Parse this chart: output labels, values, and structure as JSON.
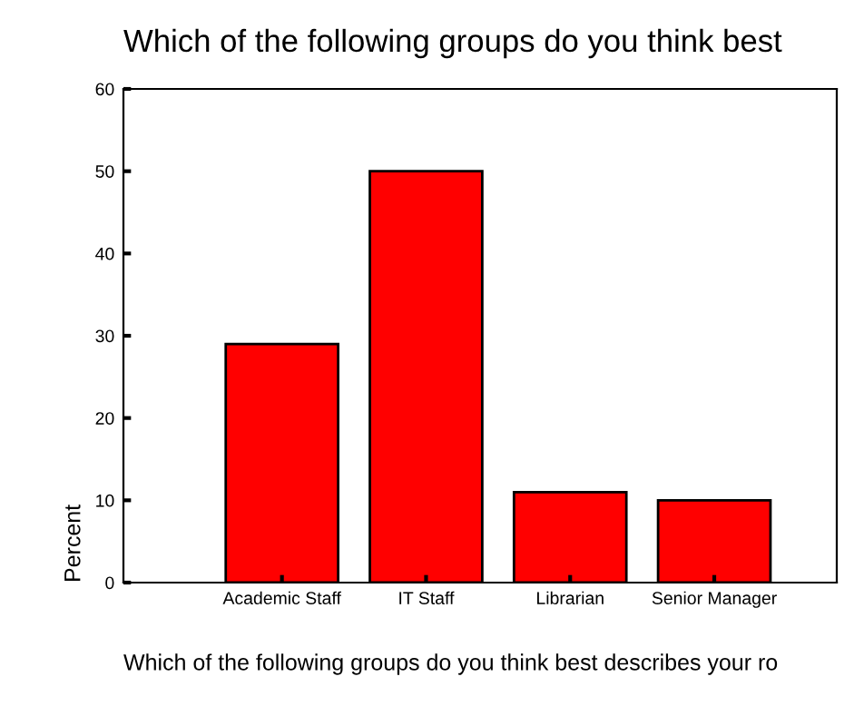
{
  "chart_data": {
    "type": "bar",
    "title": "Which of the following groups do you think best",
    "xlabel": "Which of the following groups do you think best describes your ro",
    "ylabel": "Percent",
    "categories": [
      "Academic Staff",
      "IT Staff",
      "Librarian",
      "Senior Manager"
    ],
    "values": [
      29,
      50,
      11,
      10
    ],
    "color": "#ff0000",
    "ylim": [
      0,
      60
    ],
    "yticks": [
      0,
      10,
      20,
      30,
      40,
      50,
      60
    ],
    "grid": false,
    "legend": false
  }
}
